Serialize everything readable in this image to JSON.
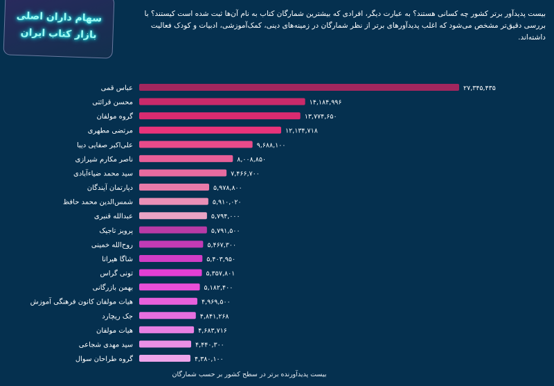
{
  "logo_text": [
    "سهام داران اصلی",
    "بازار کتاب ایران"
  ],
  "intro": "بیست پدیدآور برتر کشور چه کسانی هستند؟ به عبارت دیگر، افرادی که بیشترین شمارگان کتاب به نام آن‌ها ثبت شده است کیستند؟ با بررسی دقیق‌تر مشخص می‌شود که اغلب پدیدآورهای برتر از نظر شمارگان در زمینه‌های دینی، کمک‌آموزشی، ادبیات و کودک فعالیت داشته‌اند.",
  "chart_data": {
    "type": "bar",
    "orientation": "horizontal",
    "caption": "بیست پدیدآورنده برتر در سطح کشور بر حسب شمارگان",
    "categories": [
      "عباس قمی",
      "محسن قرائتی",
      "گروه مولفان",
      "مرتضی مطهری",
      "علی‌اکبر صفایی دیبا",
      "ناصر مکارم شیرازی",
      "سید محمد ضیاءآبادی",
      "دپارتمان آیندگان",
      "شمس‌الدین محمد حافظ",
      "عبدالله قنبری",
      "پرویز تاجیک",
      "روح‌الله خمینی",
      "شاگا هیراتا",
      "تونی گراس",
      "بهمن بازرگانی",
      "هیات مولفان کانون فرهنگی آموزش",
      "جک ریچارد",
      "هیات مولفان",
      "سید مهدی شجاعی",
      "گروه طراحان سوال"
    ],
    "values": [
      27345435,
      14184996,
      13774650,
      12134718,
      9688100,
      8008850,
      7466700,
      5978800,
      5910020,
      5794000,
      5791500,
      5467300,
      5403950,
      5357801,
      5182400,
      4969500,
      4841268,
      4683716,
      4440300,
      4380100
    ],
    "value_labels": [
      "۲۷,۳۴۵,۴۳۵",
      "۱۴,۱۸۴,۹۹۶",
      "۱۳,۷۷۴,۶۵۰",
      "۱۲,۱۳۴,۷۱۸",
      "۹,۶۸۸,۱۰۰",
      "۸,۰۰۸,۸۵۰",
      "۷,۴۶۶,۷۰۰",
      "۵,۹۷۸,۸۰۰",
      "۵,۹۱۰,۰۲۰",
      "۵,۷۹۴,۰۰۰",
      "۵,۷۹۱,۵۰۰",
      "۵,۴۶۷,۳۰۰",
      "۵,۴۰۳,۹۵۰",
      "۵,۳۵۷,۸۰۱",
      "۵,۱۸۲,۴۰۰",
      "۴,۹۶۹,۵۰۰",
      "۴,۸۴۱,۲۶۸",
      "۴,۶۸۳,۷۱۶",
      "۴,۴۴۰,۳۰۰",
      "۴,۳۸۰,۱۰۰"
    ],
    "colors": [
      "#a3265e",
      "#c92a6a",
      "#d92b70",
      "#e8337a",
      "#e84b8a",
      "#e85f98",
      "#e86b9f",
      "#e87aa9",
      "#ea8fb6",
      "#eaa3c4",
      "#b83aa6",
      "#c23bb5",
      "#d13dc6",
      "#e23fd4",
      "#e84ed8",
      "#e860dc",
      "#e86fdf",
      "#e87fe2",
      "#ea90e6",
      "#eea4ea"
    ],
    "background": "#05304f",
    "grid": false,
    "legend": "none"
  }
}
